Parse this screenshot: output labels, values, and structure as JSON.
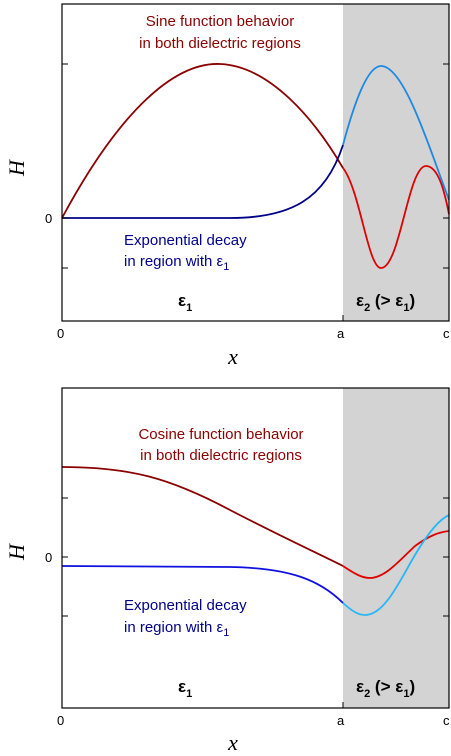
{
  "colors": {
    "dark_red": "#8b0000",
    "red": "#e00000",
    "dark_blue": "#00008b",
    "blue": "#1010e0",
    "light_blue": "#1e88e5",
    "cyan": "#29b6f6",
    "shade": "#d3d3d3"
  },
  "panels": [
    {
      "ylabel": "H",
      "xlabel": "x",
      "x_ticks": [
        "0",
        "a",
        "c"
      ],
      "y_ticks": [
        "0"
      ],
      "annotation_top": [
        "Sine function behavior",
        "in both dielectric regions"
      ],
      "annotation_bottom": [
        "Exponential decay",
        "in region with ε",
        "1"
      ],
      "region_left": {
        "main": "ε",
        "sub": "1"
      },
      "region_right": {
        "main": "ε",
        "sub": "2",
        "paren": " (> ε",
        "sub2": "1",
        "close": ")"
      }
    },
    {
      "ylabel": "H",
      "xlabel": "x",
      "x_ticks": [
        "0",
        "a",
        "c"
      ],
      "y_ticks": [
        "0"
      ],
      "annotation_top": [
        "Cosine function behavior",
        "in both dielectric regions"
      ],
      "annotation_bottom": [
        "Exponential decay",
        "in region with ε",
        "1"
      ],
      "region_left": {
        "main": "ε",
        "sub": "1"
      },
      "region_right": {
        "main": "ε",
        "sub": "2",
        "paren": " (> ε",
        "sub2": "1",
        "close": ")"
      }
    }
  ]
}
